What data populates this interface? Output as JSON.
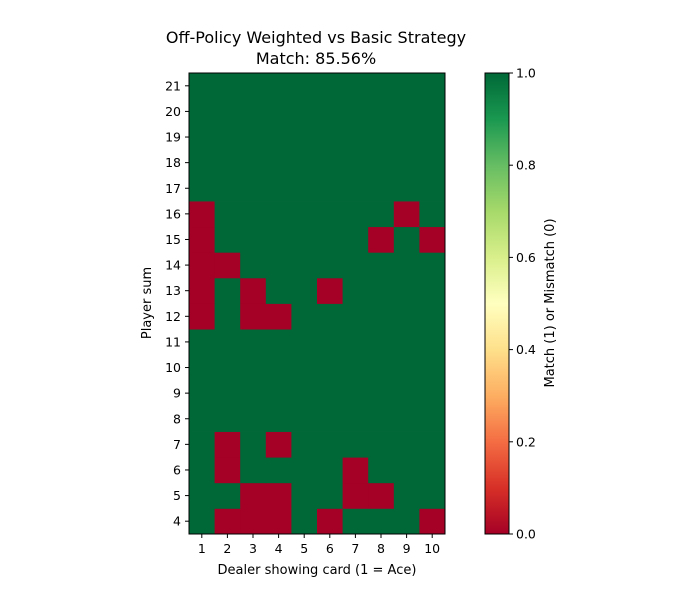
{
  "chart_data": {
    "type": "heatmap",
    "title": "Off-Policy Weighted vs Basic Strategy",
    "subtitle": "Match: 85.56%",
    "xlabel": "Dealer showing card (1 = Ace)",
    "ylabel": "Player sum",
    "x": [
      1,
      2,
      3,
      4,
      5,
      6,
      7,
      8,
      9,
      10
    ],
    "y": [
      4,
      5,
      6,
      7,
      8,
      9,
      10,
      11,
      12,
      13,
      14,
      15,
      16,
      17,
      18,
      19,
      20,
      21
    ],
    "values": [
      [
        1,
        0,
        0,
        0,
        1,
        0,
        1,
        1,
        1,
        0
      ],
      [
        1,
        1,
        0,
        0,
        1,
        1,
        0,
        0,
        1,
        1
      ],
      [
        1,
        0,
        1,
        1,
        1,
        1,
        0,
        1,
        1,
        1
      ],
      [
        1,
        0,
        1,
        0,
        1,
        1,
        1,
        1,
        1,
        1
      ],
      [
        1,
        1,
        1,
        1,
        1,
        1,
        1,
        1,
        1,
        1
      ],
      [
        1,
        1,
        1,
        1,
        1,
        1,
        1,
        1,
        1,
        1
      ],
      [
        1,
        1,
        1,
        1,
        1,
        1,
        1,
        1,
        1,
        1
      ],
      [
        1,
        1,
        1,
        1,
        1,
        1,
        1,
        1,
        1,
        1
      ],
      [
        0,
        1,
        0,
        0,
        1,
        1,
        1,
        1,
        1,
        1
      ],
      [
        0,
        1,
        0,
        1,
        1,
        0,
        1,
        1,
        1,
        1
      ],
      [
        0,
        0,
        1,
        1,
        1,
        1,
        1,
        1,
        1,
        1
      ],
      [
        0,
        1,
        1,
        1,
        1,
        1,
        1,
        0,
        1,
        0
      ],
      [
        0,
        1,
        1,
        1,
        1,
        1,
        1,
        1,
        0,
        1
      ],
      [
        1,
        1,
        1,
        1,
        1,
        1,
        1,
        1,
        1,
        1
      ],
      [
        1,
        1,
        1,
        1,
        1,
        1,
        1,
        1,
        1,
        1
      ],
      [
        1,
        1,
        1,
        1,
        1,
        1,
        1,
        1,
        1,
        1
      ],
      [
        1,
        1,
        1,
        1,
        1,
        1,
        1,
        1,
        1,
        1
      ],
      [
        1,
        1,
        1,
        1,
        1,
        1,
        1,
        1,
        1,
        1
      ]
    ],
    "colormap": "RdYlGn",
    "vmin": 0.0,
    "vmax": 1.0,
    "colorbar": {
      "label": "Match (1) or Mismatch (0)",
      "ticks": [
        "0.0",
        "0.2",
        "0.4",
        "0.6",
        "0.8",
        "1.0"
      ]
    },
    "colors": {
      "match": "#006837",
      "mismatch": "#a50026"
    }
  }
}
